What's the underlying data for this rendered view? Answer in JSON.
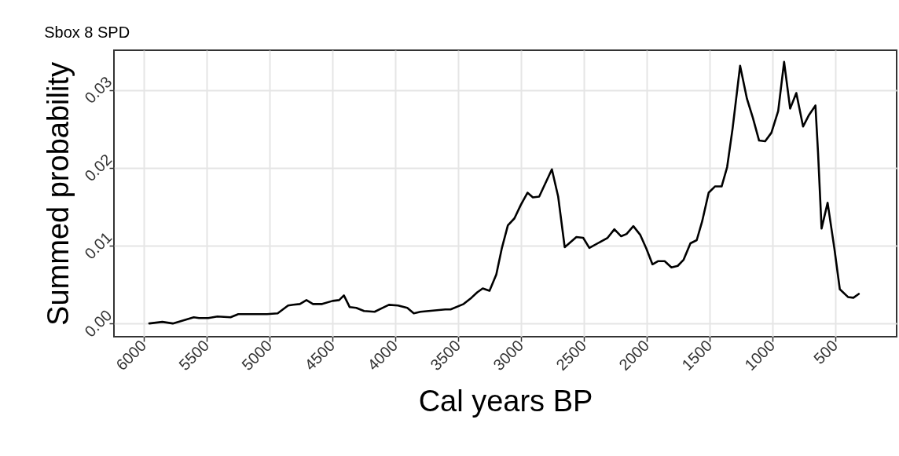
{
  "chart_data": {
    "type": "line",
    "title": "Sbox 8 SPD",
    "xlabel": "Cal years BP",
    "ylabel": "Summed probability",
    "series": [
      {
        "color": "#000000",
        "x": [
          5954,
          5850,
          5767,
          5600,
          5558,
          5485,
          5412,
          5308,
          5246,
          5017,
          4933,
          4850,
          4808,
          4756,
          4704,
          4652,
          4579,
          4496,
          4444,
          4406,
          4360,
          4308,
          4246,
          4162,
          4100,
          4048,
          3975,
          3902,
          3850,
          3798,
          3600,
          3558,
          3454,
          3392,
          3346,
          3302,
          3248,
          3194,
          3151,
          3102,
          3050,
          3000,
          2946,
          2903,
          2853,
          2752,
          2702,
          2650,
          2557,
          2503,
          2454,
          2309,
          2255,
          2201,
          2158,
          2104,
          2050,
          2000,
          1952,
          1909,
          1855,
          1801,
          1751,
          1704,
          1650,
          1600,
          1557,
          1505,
          1455,
          1402,
          1358,
          1315,
          1255,
          1201,
          1153,
          1104,
          1056,
          1006,
          952,
          905,
          857,
          808,
          754,
          710,
          656,
          635,
          607,
          559,
          505,
          462,
          397,
          354,
          311
        ],
        "values": [
          0,
          0.0002,
          0,
          0.0008,
          0.0007,
          0.0007,
          0.0009,
          0.0008,
          0.0012,
          0.0012,
          0.0013,
          0.0023,
          0.0024,
          0.0025,
          0.003,
          0.0025,
          0.0025,
          0.0029,
          0.003,
          0.0036,
          0.0021,
          0.002,
          0.0016,
          0.0015,
          0.002,
          0.0024,
          0.0023,
          0.002,
          0.0013,
          0.0015,
          0.0018,
          0.0018,
          0.0025,
          0.0033,
          0.004,
          0.0045,
          0.0042,
          0.0063,
          0.0096,
          0.0126,
          0.0135,
          0.0152,
          0.0168,
          0.0162,
          0.0163,
          0.0198,
          0.0163,
          0.0098,
          0.0111,
          0.011,
          0.0097,
          0.011,
          0.0121,
          0.0112,
          0.0115,
          0.0125,
          0.0114,
          0.0096,
          0.0076,
          0.008,
          0.008,
          0.0072,
          0.0074,
          0.0082,
          0.0103,
          0.0107,
          0.0131,
          0.0168,
          0.0176,
          0.0176,
          0.0201,
          0.025,
          0.0331,
          0.0289,
          0.0264,
          0.0235,
          0.0234,
          0.0245,
          0.0273,
          0.0336,
          0.0276,
          0.0296,
          0.0253,
          0.0267,
          0.028,
          0.0219,
          0.0122,
          0.0155,
          0.0096,
          0.0044,
          0.0034,
          0.0033,
          0.0038
        ]
      }
    ],
    "xlim": [
      6235,
      10
    ],
    "xticks": [
      6000,
      5500,
      5000,
      4500,
      4000,
      3500,
      3000,
      2500,
      2000,
      1500,
      1000,
      500
    ],
    "ylim": [
      -0.0017,
      0.0351
    ],
    "yticks": [
      {
        "value": 0,
        "label": "0.00"
      },
      {
        "value": 0.01,
        "label": "0.01"
      },
      {
        "value": 0.02,
        "label": "0.02"
      },
      {
        "value": 0.03,
        "label": "0.03"
      }
    ],
    "grid": true,
    "line_style": "solid"
  }
}
